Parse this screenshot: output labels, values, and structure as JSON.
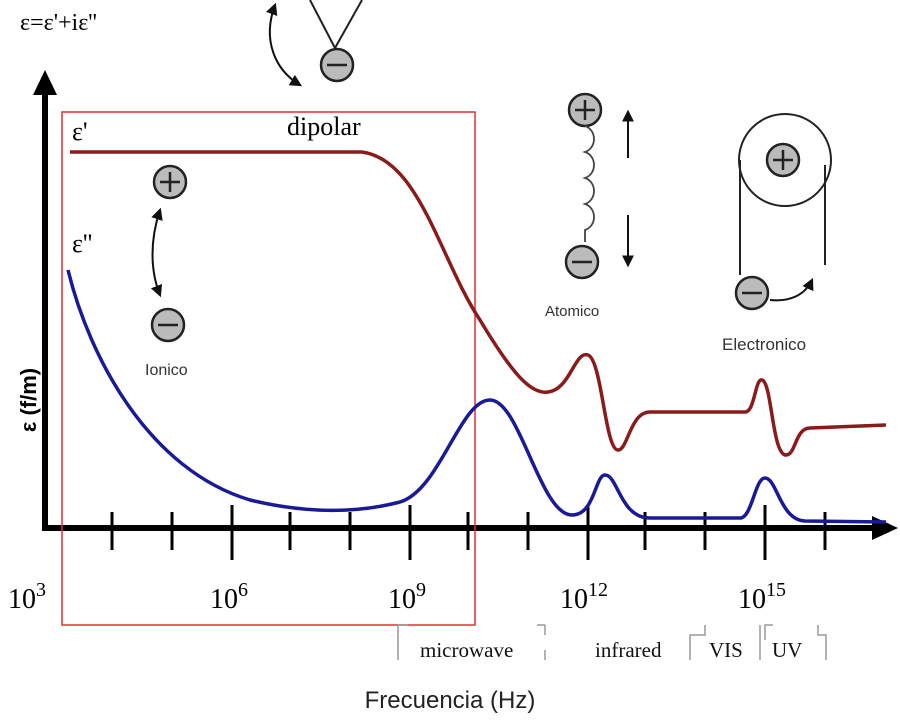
{
  "formula": "ε=ε'+iε''",
  "curves": {
    "real": "ε'",
    "imag": "ε''"
  },
  "mechanisms": {
    "dipolar": "dipolar",
    "ionic": "Ionico",
    "atomic": "Atomico",
    "electronic": "Electronico"
  },
  "y_axis_label": "ε (f/m)",
  "x_axis": {
    "ticks": [
      {
        "base": "10",
        "exp": "3"
      },
      {
        "base": "10",
        "exp": "6"
      },
      {
        "base": "10",
        "exp": "9"
      },
      {
        "base": "10",
        "exp": "12"
      },
      {
        "base": "10",
        "exp": "15"
      }
    ],
    "label": "Frecuencia (Hz)"
  },
  "bands": [
    "microwave",
    "infrared",
    "VIS",
    "UV"
  ]
}
